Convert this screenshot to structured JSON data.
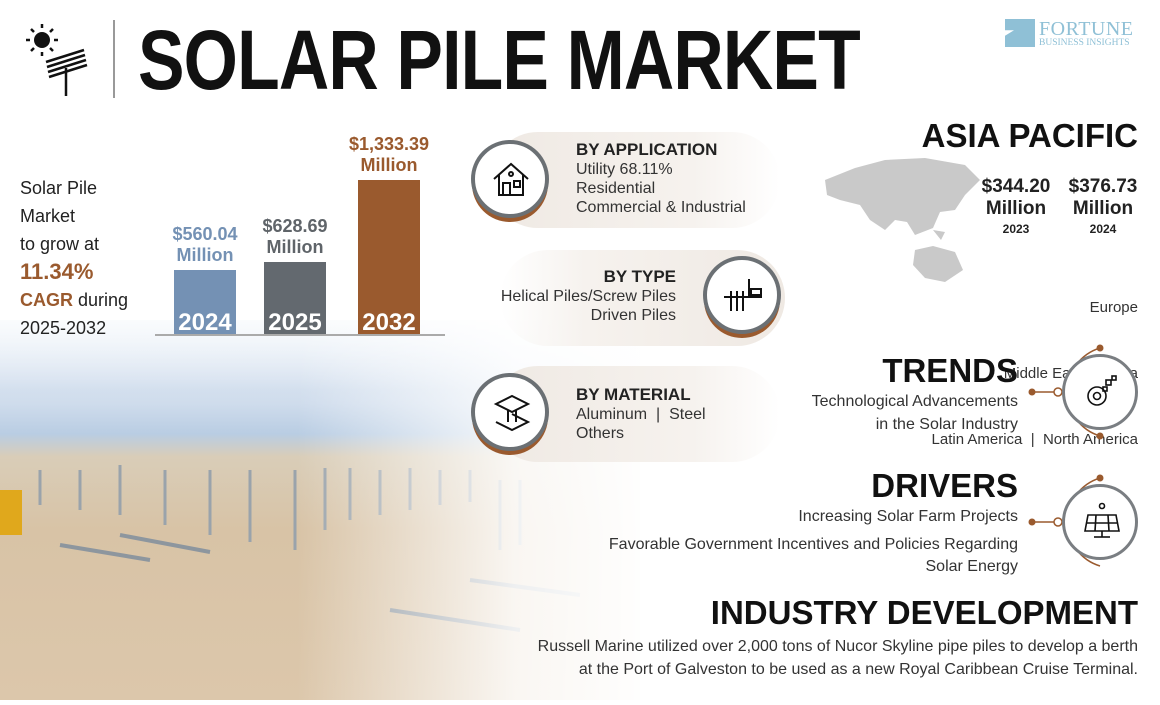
{
  "header": {
    "title": "SOLAR PILE MARKET",
    "logo": {
      "line1": "FORTUNE",
      "line2": "BUSINESS INSIGHTS"
    }
  },
  "growth": {
    "line1": "Solar Pile",
    "line2": "Market",
    "line3": "to grow at",
    "cagr": "11.34%",
    "cagr_label": "CAGR",
    "during": "during",
    "period": "2025-2032"
  },
  "chart_data": {
    "type": "bar",
    "categories": [
      "2024",
      "2025",
      "2032"
    ],
    "values": [
      560.04,
      628.69,
      1333.39
    ],
    "value_labels": [
      "$560.04",
      "$628.69",
      "$1,333.39"
    ],
    "unit": "Million",
    "colors": [
      "#7491b4",
      "#63696f",
      "#9a5a2e"
    ]
  },
  "segments": {
    "application": {
      "title": "BY APPLICATION",
      "highlight": "Utility 68.11%",
      "items": [
        "Residential",
        "Commercial & Industrial"
      ]
    },
    "type": {
      "title": "BY TYPE",
      "items": [
        "Helical Piles/Screw Piles",
        "Driven Piles"
      ]
    },
    "material": {
      "title": "BY MATERIAL",
      "items": [
        "Aluminum  |  Steel",
        "Others"
      ]
    }
  },
  "region": {
    "title": "ASIA PACIFIC",
    "values": [
      {
        "amount": "$344.20",
        "unit": "Million",
        "year": "2023"
      },
      {
        "amount": "$376.73",
        "unit": "Million",
        "year": "2024"
      }
    ],
    "others": [
      "Europe",
      "Middle East & Africa",
      "Latin America  |  North America"
    ]
  },
  "trends": {
    "title": "TRENDS",
    "lines": [
      "Technological Advancements",
      "in the Solar Industry"
    ]
  },
  "drivers": {
    "title": "DRIVERS",
    "items": [
      "Increasing Solar Farm Projects",
      "Favorable Government Incentives and Policies Regarding",
      "Solar Energy"
    ]
  },
  "industry": {
    "title": "INDUSTRY DEVELOPMENT",
    "lines": [
      "Russell Marine utilized over 2,000 tons of Nucor Skyline pipe piles to develop a berth",
      "at the Port of Galveston to be used as a new Royal Caribbean Cruise Terminal."
    ]
  },
  "colors": {
    "accent": "#9a5a2e",
    "grey": "#63696f",
    "blue": "#7491b4"
  }
}
